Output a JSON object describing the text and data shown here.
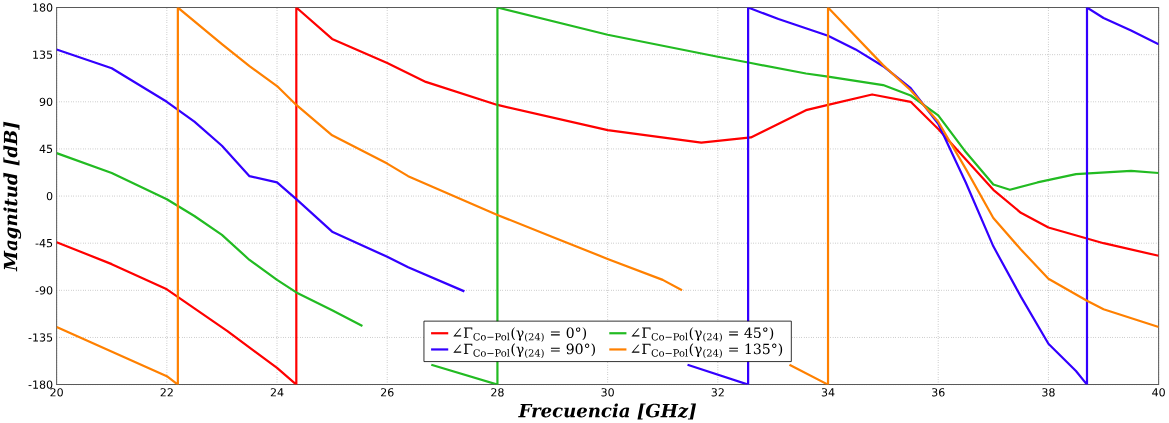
{
  "chart_data": {
    "type": "line",
    "xlabel": "Frecuencia [GHz]",
    "ylabel": "Magnitud [dB]",
    "xlim": [
      20,
      40
    ],
    "ylim": [
      -180,
      180
    ],
    "xticks": [
      20,
      22,
      24,
      26,
      28,
      30,
      32,
      34,
      36,
      38,
      40
    ],
    "yticks": [
      -180,
      -135,
      -90,
      -45,
      0,
      45,
      90,
      135,
      180
    ],
    "grid": true,
    "legend": "bottom",
    "marker": "none",
    "line_style": "solid",
    "series": [
      {
        "name": "∠Γ$_{Co−Pol}$(γ$_{(24)}$ = 0°)",
        "color": "#ff0000",
        "x": [
          20,
          21,
          22,
          23.1,
          24,
          24.35,
          24.35,
          25,
          26,
          26.7,
          28,
          30,
          31.7,
          32.6,
          33.6,
          34,
          34.8,
          35.5,
          36,
          36.5,
          37,
          37.5,
          38,
          39,
          40
        ],
        "values": [
          -44,
          -65,
          -89,
          -129,
          -164,
          -180,
          180,
          150,
          127,
          109,
          87,
          63,
          51,
          56,
          82,
          87,
          97,
          90,
          64,
          35,
          6,
          -16,
          -30,
          -45,
          -57
        ]
      },
      {
        "name": "∠Γ$_{Co−Pol}$(γ$_{(24)}$ = 45°)",
        "color": "#22bb22",
        "x": [
          20,
          21,
          22,
          22.5,
          23,
          23.5,
          24,
          24.35,
          25,
          25.55,
          26,
          26.8,
          28,
          28,
          30,
          32,
          32.6,
          33.6,
          34,
          35,
          35.5,
          36,
          36.5,
          37,
          37.3,
          37.8,
          38.5,
          39.5,
          40
        ],
        "values": [
          41,
          22,
          -3,
          -19,
          -37,
          -61,
          -80,
          -92,
          -109,
          -124,
          null,
          -161,
          -180,
          180,
          154,
          133,
          127,
          117,
          114,
          106,
          96,
          77,
          42,
          11,
          6,
          13,
          21,
          24,
          22
        ]
      },
      {
        "name": "∠Γ$_{Co−Pol}$(γ$_{(24)}$ = 90°)",
        "color": "#3300ff",
        "x": [
          20,
          21,
          22,
          22.5,
          23,
          23.5,
          24,
          24.35,
          25,
          26,
          26.38,
          27.4,
          29,
          31.45,
          32.55,
          32.55,
          33.1,
          34,
          34.5,
          35,
          35.5,
          36,
          36.5,
          37,
          37.5,
          38,
          38.5,
          38.7,
          38.7,
          39,
          39.5,
          40
        ],
        "values": [
          140,
          122,
          90,
          71,
          48,
          19,
          13,
          -3,
          -34,
          -58,
          -68,
          -91,
          null,
          -161,
          -180,
          180,
          169,
          153,
          140,
          124,
          103,
          69,
          13,
          -48,
          -96,
          -141,
          -167,
          -180,
          180,
          170,
          158,
          145
        ]
      },
      {
        "name": "∠Γ$_{Co−Pol}$(γ$_{(24)}$ = 135°)",
        "color": "#ff8000",
        "x": [
          20,
          22,
          22.2,
          22.2,
          23,
          23.5,
          24,
          24.35,
          25,
          26,
          26.38,
          28,
          29,
          30,
          31,
          31.35,
          32,
          33.3,
          34,
          34,
          35,
          35.5,
          36,
          36.5,
          37,
          37.5,
          38,
          38.7,
          39,
          40
        ],
        "values": [
          -125,
          -172,
          -180,
          180,
          145,
          124,
          105,
          87,
          58,
          31,
          19,
          -18,
          -39,
          -60,
          -80,
          -90,
          null,
          -161,
          -180,
          180,
          125,
          101,
          71,
          26,
          -21,
          -51,
          -79,
          -100,
          -108,
          -125
        ]
      }
    ]
  }
}
